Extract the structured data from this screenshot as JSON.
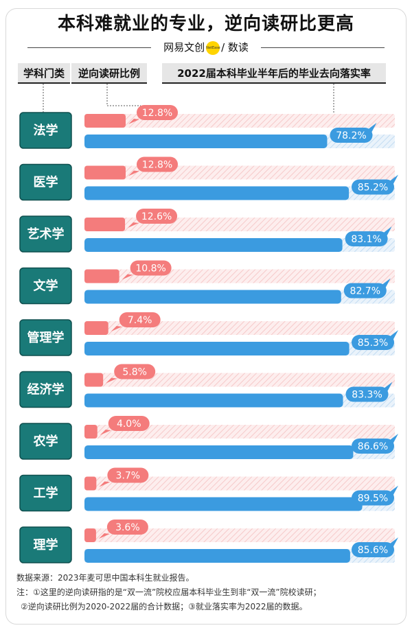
{
  "title": "本科难就业的专业，逆向读研比更高",
  "brand": {
    "left": "网易文创",
    "badge": "NetEase",
    "right": "数读"
  },
  "headers": {
    "category": "学科门类",
    "reverse": "逆向读研比例",
    "employment": "2022届本科毕业半年后的毕业去向落实率"
  },
  "colors": {
    "reverse": "#f47c7c",
    "reverse_bg": "#fbe5e5",
    "employment": "#3b9be0",
    "employment_bg": "#dbeaf7",
    "label_bg": "#1a7a78"
  },
  "chart_data": {
    "type": "bar",
    "categories": [
      "法学",
      "医学",
      "艺术学",
      "文学",
      "管理学",
      "经济学",
      "农学",
      "工学",
      "理学"
    ],
    "series": [
      {
        "name": "逆向读研比例",
        "values": [
          12.8,
          12.8,
          12.6,
          10.8,
          7.4,
          5.8,
          4.0,
          3.7,
          3.6
        ],
        "unit": "%"
      },
      {
        "name": "2022届本科毕业半年后的毕业去向落实率",
        "values": [
          78.2,
          85.2,
          83.1,
          82.7,
          85.3,
          83.3,
          86.6,
          89.5,
          85.6
        ],
        "unit": "%"
      }
    ]
  },
  "footnote": {
    "source": "数据来源：2023年麦可思中国本科生就业报告。",
    "note1": "注：①这里的逆向读研指的是“双一流”院校应届本科毕业生到非“双一流”院校读研；",
    "note2": "②逆向读研比例为2020-2022届的合计数据；③就业落实率为2022届的数据。"
  }
}
